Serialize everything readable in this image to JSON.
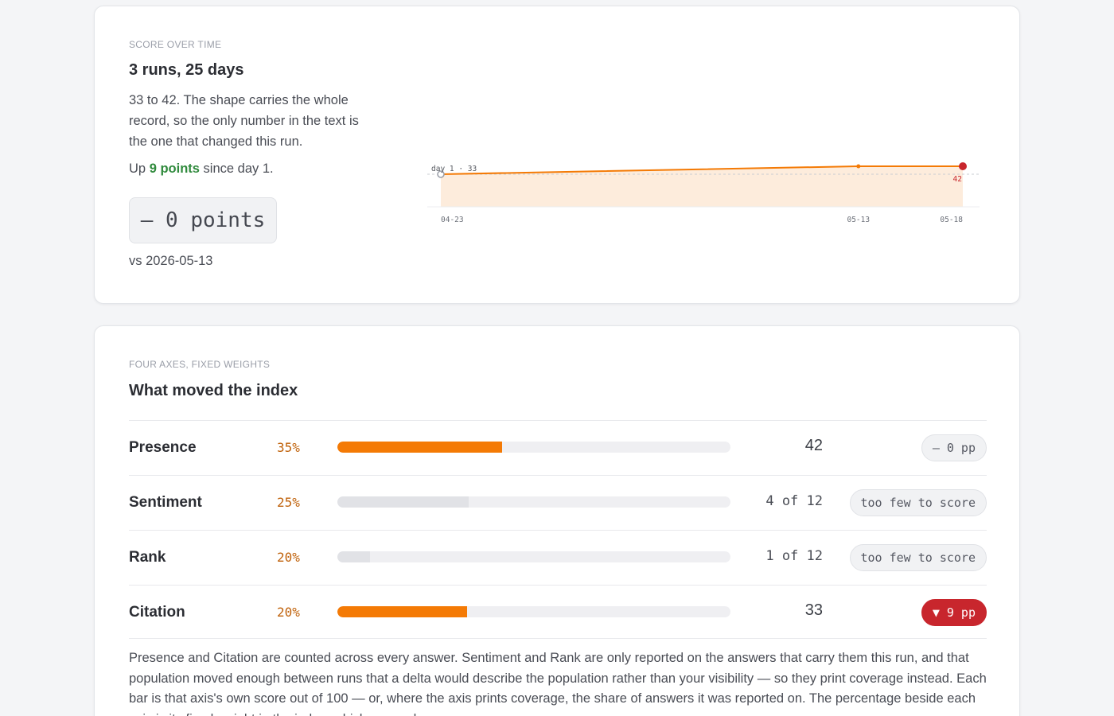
{
  "score_card": {
    "eyebrow": "SCORE OVER TIME",
    "heading": "3 runs, 25 days",
    "body": "33 to 42. The shape carries the whole record, so the only number in the text is the one that changed this run.",
    "up_prefix": "Up",
    "up_value": "9 points",
    "up_suffix": "since day 1.",
    "delta": "– 0 points",
    "vs": "vs 2026-05-13",
    "colors": {
      "accent": "#f47a05",
      "area": "#fdecdc",
      "latest_point": "#c8262d",
      "positive": "#2f8a3c"
    }
  },
  "chart_data": {
    "type": "area",
    "x": [
      "04-23",
      "05-13",
      "05-18"
    ],
    "y": [
      33,
      42,
      42
    ],
    "annotations": {
      "start_label": "day 1 · 33",
      "end_label": "42"
    },
    "baseline_reference": 33,
    "ylim": [
      0,
      42
    ],
    "grid": false
  },
  "axes_card": {
    "eyebrow": "FOUR AXES, FIXED WEIGHTS",
    "heading": "What moved the index",
    "rows": [
      {
        "name": "Presence",
        "weight": "35%",
        "bar_fraction": 0.42,
        "bar_color": "orange",
        "value": "42",
        "value_kind": "big",
        "badge": "– 0 pp",
        "badge_kind": "neutral"
      },
      {
        "name": "Sentiment",
        "weight": "25%",
        "bar_fraction": 0.333,
        "bar_color": "grey",
        "value": "4 of 12",
        "value_kind": "cov",
        "badge": "too few to score",
        "badge_kind": "neutral"
      },
      {
        "name": "Rank",
        "weight": "20%",
        "bar_fraction": 0.083,
        "bar_color": "grey",
        "value": "1 of 12",
        "value_kind": "cov",
        "badge": "too few to score",
        "badge_kind": "neutral"
      },
      {
        "name": "Citation",
        "weight": "20%",
        "bar_fraction": 0.33,
        "bar_color": "orange",
        "value": "33",
        "value_kind": "big",
        "badge": "▼ 9 pp",
        "badge_kind": "down"
      }
    ],
    "footnote": "Presence and Citation are counted across every answer. Sentiment and Rank are only reported on the answers that carry them this run, and that population moved enough between runs that a delta would describe the population rather than your visibility — so they print coverage instead. Each bar is that axis's own score out of 100 — or, where the axis prints coverage, the share of answers it was reported on. The percentage beside each axis is its fixed weight in the index, which never changes."
  }
}
